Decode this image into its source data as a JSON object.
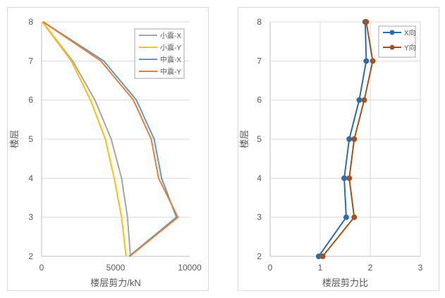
{
  "chart_data": [
    {
      "type": "line",
      "xlabel": "楼层剪力/kN",
      "ylabel": "楼层",
      "xlim": [
        0,
        10000
      ],
      "ylim": [
        2,
        8
      ],
      "xticks": [
        "0",
        "5000",
        "10000"
      ],
      "yticks": [
        "2",
        "3",
        "4",
        "5",
        "6",
        "7",
        "8"
      ],
      "grid": "horizontal",
      "legend": "top-right",
      "series": [
        {
          "name": "小震-X",
          "color": "#a5a5a5",
          "marker": "none",
          "points": [
            [
              6000,
              2
            ],
            [
              5800,
              3
            ],
            [
              5400,
              4
            ],
            [
              4700,
              5
            ],
            [
              3600,
              6
            ],
            [
              2100,
              7
            ],
            [
              50,
              8
            ]
          ]
        },
        {
          "name": "小震-Y",
          "color": "#ffc000",
          "marker": "none",
          "points": [
            [
              5700,
              2
            ],
            [
              5400,
              3
            ],
            [
              4900,
              4
            ],
            [
              4300,
              5
            ],
            [
              3300,
              6
            ],
            [
              2000,
              7
            ],
            [
              50,
              8
            ]
          ]
        },
        {
          "name": "中震-X",
          "color": "#5b9bd5",
          "marker": "none",
          "points": [
            [
              5900,
              2
            ],
            [
              9100,
              3
            ],
            [
              8100,
              4
            ],
            [
              7600,
              5
            ],
            [
              6400,
              6
            ],
            [
              4200,
              7
            ],
            [
              100,
              8
            ]
          ]
        },
        {
          "name": "中震-Y",
          "color": "#ed7d31",
          "marker": "none",
          "points": [
            [
              5950,
              2
            ],
            [
              9200,
              3
            ],
            [
              7900,
              4
            ],
            [
              7400,
              5
            ],
            [
              6200,
              6
            ],
            [
              4000,
              7
            ],
            [
              100,
              8
            ]
          ]
        }
      ]
    },
    {
      "type": "line",
      "xlabel": "楼层剪力比",
      "ylabel": "楼层",
      "xlim": [
        0,
        3
      ],
      "ylim": [
        2,
        8
      ],
      "xticks": [
        "0",
        "1",
        "2",
        "3"
      ],
      "yticks": [
        "2",
        "3",
        "4",
        "5",
        "6",
        "7",
        "8"
      ],
      "grid": "both",
      "legend": "top-right",
      "series": [
        {
          "name": "X向",
          "color": "#2e6ca4",
          "marker": "circle",
          "points": [
            [
              0.97,
              2
            ],
            [
              1.52,
              3
            ],
            [
              1.48,
              4
            ],
            [
              1.58,
              5
            ],
            [
              1.78,
              6
            ],
            [
              1.92,
              7
            ],
            [
              1.9,
              8
            ]
          ]
        },
        {
          "name": "Y向",
          "color": "#a5501d",
          "marker": "circle",
          "points": [
            [
              1.05,
              2
            ],
            [
              1.68,
              3
            ],
            [
              1.58,
              4
            ],
            [
              1.68,
              5
            ],
            [
              1.88,
              6
            ],
            [
              2.05,
              7
            ],
            [
              1.92,
              8
            ]
          ]
        }
      ]
    }
  ]
}
